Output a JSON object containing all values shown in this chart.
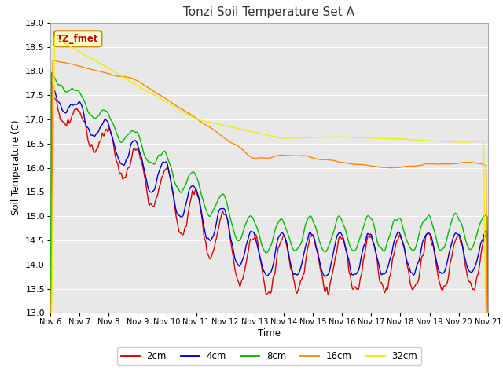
{
  "title": "Tonzi Soil Temperature Set A",
  "xlabel": "Time",
  "ylabel": "Soil Temperature (C)",
  "ylim": [
    13.0,
    19.0
  ],
  "yticks": [
    13.0,
    13.5,
    14.0,
    14.5,
    15.0,
    15.5,
    16.0,
    16.5,
    17.0,
    17.5,
    18.0,
    18.5,
    19.0
  ],
  "xtick_labels": [
    "Nov 6",
    "Nov 7",
    "Nov 8",
    "Nov 9",
    "Nov 10",
    "Nov 11",
    "Nov 12",
    "Nov 13",
    "Nov 14",
    "Nov 15",
    "Nov 16",
    "Nov 17",
    "Nov 18",
    "Nov 19",
    "Nov 20",
    "Nov 21"
  ],
  "colors": {
    "2cm": "#dd0000",
    "4cm": "#0000cc",
    "8cm": "#00bb00",
    "16cm": "#ff8800",
    "32cm": "#eeee00"
  },
  "plot_bg": "#e8e8e8",
  "fig_bg": "#ffffff",
  "legend_label": "TZ_fmet",
  "legend_bg": "#ffffcc",
  "legend_border": "#cc8800",
  "grid_color": "#ffffff",
  "n_days": 15
}
